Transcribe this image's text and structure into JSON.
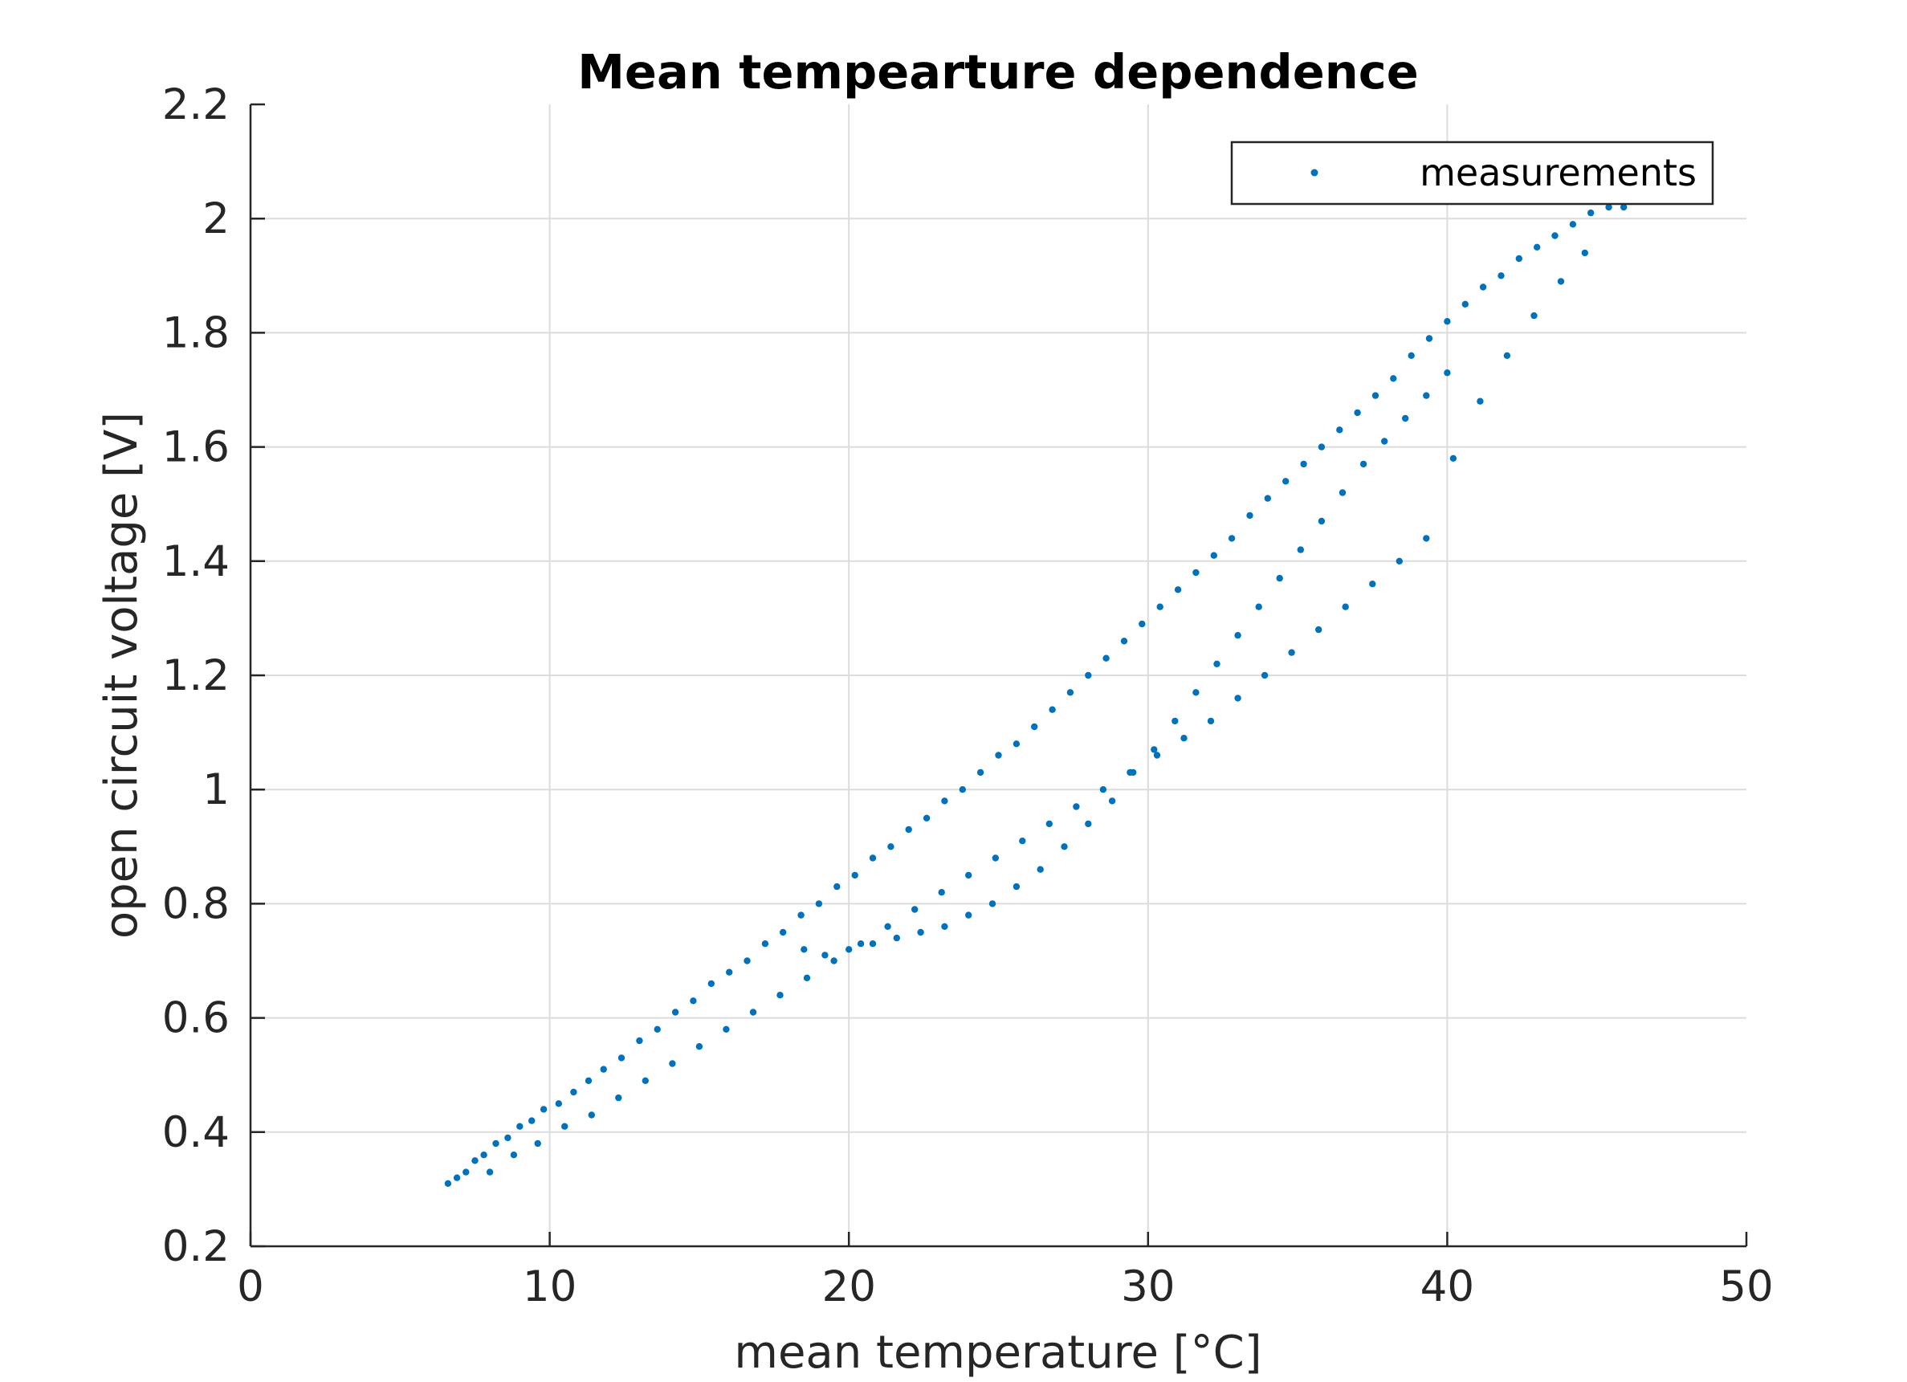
{
  "chart_data": {
    "type": "scatter",
    "title": "Mean tempearture dependence",
    "xlabel": "mean temperature [°C]",
    "ylabel": "open circuit voltage [V]",
    "xlim": [
      0,
      50
    ],
    "ylim": [
      0.2,
      2.2
    ],
    "xticks": [
      0,
      10,
      20,
      30,
      40,
      50
    ],
    "yticks": [
      0.2,
      0.4,
      0.6,
      0.8,
      1,
      1.2,
      1.4,
      1.6,
      1.8,
      2,
      2.2
    ],
    "xtick_labels": [
      "0",
      "10",
      "20",
      "30",
      "40",
      "50"
    ],
    "ytick_labels": [
      "0.2",
      "0.4",
      "0.6",
      "0.8",
      "1",
      "1.2",
      "1.4",
      "1.6",
      "1.8",
      "2",
      "2.2"
    ],
    "grid": true,
    "legend_position": "top-right",
    "series": [
      {
        "name": "measurements",
        "color": "#0072BD",
        "marker": "point",
        "x": [
          6.6,
          6.9,
          7.2,
          7.5,
          7.8,
          8.2,
          8.6,
          9.0,
          9.4,
          9.8,
          10.3,
          10.8,
          11.3,
          11.8,
          12.4,
          13.0,
          13.6,
          14.2,
          14.8,
          15.4,
          16.0,
          16.6,
          17.2,
          17.8,
          18.4,
          19.0,
          19.6,
          20.2,
          20.8,
          21.4,
          22.0,
          22.6,
          23.2,
          23.8,
          24.4,
          25.0,
          25.6,
          26.2,
          26.8,
          27.4,
          28.0,
          28.6,
          29.2,
          29.8,
          30.4,
          31.0,
          31.6,
          32.2,
          32.8,
          33.4,
          34.0,
          34.6,
          35.2,
          35.8,
          36.4,
          37.0,
          37.6,
          38.2,
          38.8,
          39.4,
          40.0,
          40.6,
          41.2,
          41.8,
          42.4,
          43.0,
          43.6,
          44.2,
          44.8,
          45.4,
          45.9,
          8.0,
          8.8,
          9.6,
          10.5,
          11.4,
          12.3,
          13.2,
          14.1,
          15.0,
          15.9,
          16.8,
          17.7,
          18.6,
          19.5,
          20.4,
          21.3,
          22.2,
          23.1,
          24.0,
          24.9,
          25.8,
          26.7,
          27.6,
          28.5,
          29.4,
          30.3,
          31.2,
          32.1,
          33.0,
          33.9,
          34.8,
          35.7,
          36.6,
          37.5,
          38.4,
          39.3,
          40.2,
          41.1,
          42.0,
          42.9,
          43.8,
          44.6,
          18.5,
          19.2,
          20.0,
          20.8,
          21.6,
          22.4,
          23.2,
          24.0,
          24.8,
          25.6,
          26.4,
          27.2,
          28.0,
          28.8,
          29.5,
          30.2,
          30.9,
          31.6,
          32.3,
          33.0,
          33.7,
          34.4,
          35.1,
          35.8,
          36.5,
          37.2,
          37.9,
          38.6,
          39.3,
          40.0
        ],
        "y": [
          0.31,
          0.32,
          0.33,
          0.35,
          0.36,
          0.38,
          0.39,
          0.41,
          0.42,
          0.44,
          0.45,
          0.47,
          0.49,
          0.51,
          0.53,
          0.56,
          0.58,
          0.61,
          0.63,
          0.66,
          0.68,
          0.7,
          0.73,
          0.75,
          0.78,
          0.8,
          0.83,
          0.85,
          0.88,
          0.9,
          0.93,
          0.95,
          0.98,
          1.0,
          1.03,
          1.06,
          1.08,
          1.11,
          1.14,
          1.17,
          1.2,
          1.23,
          1.26,
          1.29,
          1.32,
          1.35,
          1.38,
          1.41,
          1.44,
          1.48,
          1.51,
          1.54,
          1.57,
          1.6,
          1.63,
          1.66,
          1.69,
          1.72,
          1.76,
          1.79,
          1.82,
          1.85,
          1.88,
          1.9,
          1.93,
          1.95,
          1.97,
          1.99,
          2.01,
          2.02,
          2.02,
          0.33,
          0.36,
          0.38,
          0.41,
          0.43,
          0.46,
          0.49,
          0.52,
          0.55,
          0.58,
          0.61,
          0.64,
          0.67,
          0.7,
          0.73,
          0.76,
          0.79,
          0.82,
          0.85,
          0.88,
          0.91,
          0.94,
          0.97,
          1.0,
          1.03,
          1.06,
          1.09,
          1.12,
          1.16,
          1.2,
          1.24,
          1.28,
          1.32,
          1.36,
          1.4,
          1.44,
          1.58,
          1.68,
          1.76,
          1.83,
          1.89,
          1.94,
          0.72,
          0.71,
          0.72,
          0.73,
          0.74,
          0.75,
          0.76,
          0.78,
          0.8,
          0.83,
          0.86,
          0.9,
          0.94,
          0.98,
          1.03,
          1.07,
          1.12,
          1.17,
          1.22,
          1.27,
          1.32,
          1.37,
          1.42,
          1.47,
          1.52,
          1.57,
          1.61,
          1.65,
          1.69,
          1.73
        ]
      }
    ]
  }
}
